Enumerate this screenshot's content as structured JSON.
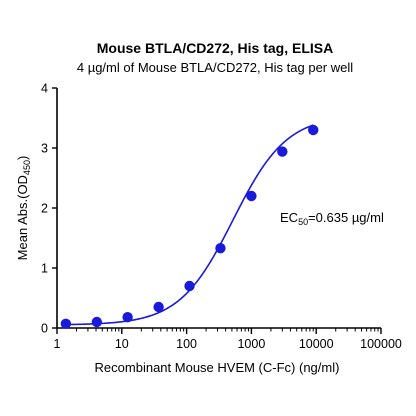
{
  "chart_data": {
    "type": "scatter",
    "title": "Mouse BTLA/CD272, His tag, ELISA",
    "subtitle": "4 µg/ml of Mouse BTLA/CD272, His tag per well",
    "xlabel": "Recombinant Mouse HVEM (C-Fc) (ng/ml)",
    "ylabel_main": "Mean Abs.(OD",
    "ylabel_sub": "450",
    "ylabel_end": ")",
    "x_scale": "log",
    "xlim": [
      1,
      100000
    ],
    "ylim": [
      0,
      4
    ],
    "x_ticks": [
      1,
      10,
      100,
      1000,
      10000,
      100000
    ],
    "x_tick_labels": [
      "1",
      "10",
      "100",
      "1000",
      "10000",
      "100000"
    ],
    "y_ticks": [
      0,
      1,
      2,
      3,
      4
    ],
    "y_tick_labels": [
      "0",
      "1",
      "2",
      "3",
      "4"
    ],
    "grid": false,
    "annotation": {
      "prefix": "EC",
      "sub": "50",
      "suffix": "=0.635 µg/ml"
    },
    "color": "#1a1adb",
    "series": [
      {
        "x": [
          1.37,
          4.12,
          12.3,
          37.0,
          111,
          333,
          1000,
          3000,
          9000
        ],
        "y": [
          0.07,
          0.1,
          0.18,
          0.35,
          0.7,
          1.33,
          2.2,
          2.94,
          3.3
        ]
      }
    ],
    "fit": "four-parameter-logistic"
  }
}
